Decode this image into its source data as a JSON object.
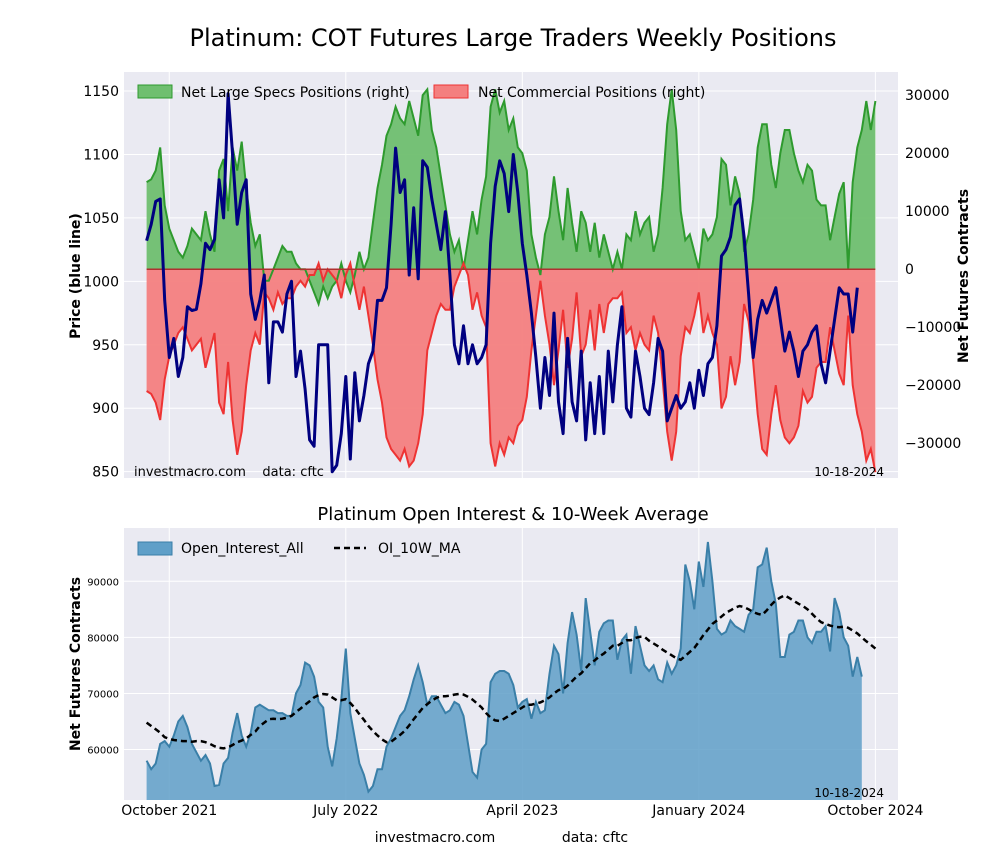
{
  "figure": {
    "title": "Platinum: COT Futures Large Traders Weekly Positions",
    "footer_site": "investmacro.com",
    "footer_data": "data: cftc"
  },
  "chart_data": [
    {
      "type": "area",
      "title": "Platinum: COT Futures Large Traders Weekly Positions",
      "ylabel": "Price (blue line)",
      "y2label": "Net Futures Contracts",
      "ylim": [
        845,
        1165
      ],
      "y2lim": [
        -36000,
        34000
      ],
      "yticks": [
        850,
        900,
        950,
        1000,
        1050,
        1100,
        1150
      ],
      "y2ticks": [
        -30000,
        -20000,
        -10000,
        0,
        10000,
        20000,
        30000
      ],
      "y2ticklabels": [
        "−30000",
        "−20000",
        "−10000",
        "0",
        "10000",
        "20000",
        "30000"
      ],
      "xlim": [
        -5,
        166
      ],
      "grid": true,
      "legend": "top",
      "annot_left": "investmacro.com    data: cftc",
      "annot_right": "10-18-2024",
      "series": [
        {
          "name": "Net Large Specs Positions (right)",
          "axis": "right",
          "color": "#2e9a2e",
          "fill": "#6fbf6f",
          "values": [
            15000,
            15500,
            17000,
            21000,
            11000,
            7000,
            5000,
            3000,
            2000,
            4000,
            7000,
            6000,
            5000,
            10000,
            6000,
            3000,
            17000,
            19000,
            10000,
            21000,
            17000,
            22000,
            14000,
            8000,
            4000,
            6000,
            -2000,
            -2000,
            0,
            2000,
            4000,
            3000,
            3000,
            1000,
            0,
            0,
            -2000,
            -4000,
            -6000,
            -3000,
            -5000,
            -3000,
            -2000,
            1000,
            -2000,
            -4000,
            -1000,
            3000,
            0,
            2000,
            8000,
            14000,
            18000,
            23000,
            25000,
            28000,
            26000,
            25000,
            29000,
            26000,
            23000,
            30000,
            31000,
            24000,
            21000,
            16000,
            11000,
            6000,
            3000,
            5000,
            0,
            5000,
            10000,
            6000,
            12000,
            16000,
            28000,
            31000,
            27000,
            29000,
            24000,
            26000,
            21000,
            20000,
            17000,
            6000,
            2000,
            -1000,
            6000,
            9000,
            16000,
            10000,
            5000,
            14000,
            8000,
            3000,
            10000,
            8000,
            3000,
            8000,
            2000,
            6000,
            3000,
            0,
            3000,
            0,
            6000,
            5000,
            10000,
            6000,
            8000,
            9000,
            3000,
            6000,
            14000,
            25000,
            31000,
            24000,
            10000,
            5000,
            6000,
            3000,
            0,
            7000,
            5000,
            6000,
            9000,
            19000,
            18000,
            11000,
            16000,
            13000,
            3000,
            6000,
            12000,
            21000,
            25000,
            25000,
            18000,
            14000,
            20000,
            24000,
            24000,
            20000,
            17000,
            15000,
            18000,
            17000,
            12000,
            11000,
            11000,
            5000,
            9000,
            13000,
            15000,
            0,
            15000,
            21000,
            24000,
            29000,
            24000,
            29000
          ]
        },
        {
          "name": "Net Commercial Positions (right)",
          "axis": "right",
          "color": "#ee3333",
          "fill": "#f47f7f",
          "values": [
            -21000,
            -21500,
            -23000,
            -26000,
            -19000,
            -15000,
            -13000,
            -11000,
            -10000,
            -12000,
            -14000,
            -13000,
            -12000,
            -17000,
            -14000,
            -11000,
            -23000,
            -25000,
            -16000,
            -26000,
            -32000,
            -28000,
            -20000,
            -14000,
            -11000,
            -13000,
            -4000,
            -5000,
            -7000,
            -4000,
            -6000,
            -5000,
            -5000,
            -3000,
            -2000,
            -3000,
            -1000,
            -1000,
            1000,
            -2000,
            0,
            -1000,
            -2000,
            -5000,
            -1000,
            1000,
            -3000,
            -7000,
            -3000,
            -8000,
            -13000,
            -19000,
            -23000,
            -29000,
            -31000,
            -32000,
            -33000,
            -31000,
            -34000,
            -33000,
            -30000,
            -25000,
            -14000,
            -11000,
            -8000,
            -6000,
            -7000,
            -7000,
            -3000,
            -1000,
            1000,
            -1000,
            -7000,
            -4000,
            -8000,
            -10000,
            -30000,
            -34000,
            -30000,
            -32000,
            -29000,
            -30000,
            -27000,
            -26000,
            -22000,
            -14000,
            -8000,
            -2000,
            -8000,
            -13000,
            -20000,
            -14000,
            -7000,
            -17000,
            -12000,
            -4000,
            -15000,
            -13000,
            -7000,
            -14000,
            -6000,
            -11000,
            -6000,
            -5000,
            -5000,
            -4000,
            -11000,
            -10000,
            -14000,
            -11000,
            -13000,
            -14000,
            -8000,
            -11000,
            -19000,
            -28000,
            -33000,
            -28000,
            -15000,
            -10000,
            -11000,
            -8000,
            -4000,
            -11000,
            -8000,
            -11000,
            -13000,
            -24000,
            -22000,
            -15000,
            -20000,
            -16000,
            -6000,
            -9000,
            -16000,
            -25000,
            -31000,
            -32000,
            -25000,
            -20000,
            -26000,
            -29000,
            -30000,
            -29000,
            -27000,
            -21000,
            -23000,
            -22000,
            -17000,
            -16000,
            -16000,
            -10000,
            -14000,
            -18000,
            -20000,
            -8000,
            -20000,
            -25000,
            -28000,
            -33000,
            -31000,
            -35000
          ]
        },
        {
          "name": "Price",
          "axis": "left",
          "color": "#000080",
          "values": [
            1032,
            1045,
            1063,
            1065,
            985,
            940,
            955,
            925,
            940,
            980,
            977,
            978,
            998,
            1030,
            1025,
            1033,
            1080,
            1050,
            1148,
            1100,
            1045,
            1070,
            1080,
            990,
            970,
            985,
            1005,
            920,
            968,
            968,
            960,
            990,
            1000,
            925,
            945,
            915,
            875,
            870,
            950,
            950,
            950,
            850,
            855,
            880,
            925,
            860,
            928,
            890,
            910,
            935,
            945,
            985,
            985,
            995,
            1045,
            1105,
            1070,
            1080,
            1005,
            1058,
            1002,
            1095,
            1090,
            1065,
            1045,
            1025,
            1055,
            1005,
            950,
            935,
            965,
            935,
            950,
            935,
            940,
            950,
            1030,
            1075,
            1095,
            1085,
            1055,
            1100,
            1070,
            1030,
            1005,
            975,
            940,
            900,
            940,
            910,
            975,
            905,
            880,
            955,
            905,
            890,
            945,
            875,
            920,
            880,
            925,
            880,
            945,
            905,
            950,
            980,
            900,
            893,
            945,
            925,
            900,
            895,
            920,
            955,
            945,
            890,
            900,
            910,
            900,
            905,
            920,
            900,
            930,
            910,
            935,
            940,
            965,
            1020,
            1025,
            1035,
            1060,
            1065,
            1035,
            990,
            940,
            970,
            985,
            975,
            985,
            995,
            970,
            945,
            960,
            945,
            925,
            945,
            950,
            960,
            965,
            935,
            920,
            945,
            970,
            995,
            990,
            990,
            960,
            995
          ]
        }
      ]
    },
    {
      "type": "area",
      "title": "Platinum Open Interest & 10-Week Average",
      "xlabel": "",
      "ylabel": "Net Futures Contracts",
      "ylim": [
        51000,
        99500
      ],
      "yticks": [
        60000,
        70000,
        80000,
        90000
      ],
      "xlim": [
        -5,
        166
      ],
      "xticks": [
        {
          "label": "October 2021",
          "i": 5
        },
        {
          "label": "July 2022",
          "i": 44
        },
        {
          "label": "April 2023",
          "i": 83
        },
        {
          "label": "January 2024",
          "i": 122
        },
        {
          "label": "October 2024",
          "i": 161
        }
      ],
      "grid": true,
      "legend": "top-left",
      "annot_right": "10-18-2024",
      "series": [
        {
          "name": "Open_Interest_All",
          "color": "#3a7fa8",
          "fill": "#5f9fc8",
          "values": [
            58000,
            56500,
            57500,
            61000,
            61500,
            60500,
            62500,
            65000,
            66000,
            64000,
            61000,
            59500,
            58000,
            59000,
            57500,
            53500,
            53700,
            57500,
            58500,
            63000,
            66500,
            62500,
            60500,
            63000,
            67500,
            68000,
            67500,
            67000,
            67000,
            66500,
            66500,
            66000,
            66000,
            70000,
            71500,
            75500,
            75000,
            73000,
            68500,
            67500,
            60500,
            57000,
            62000,
            69000,
            78000,
            66500,
            62000,
            57500,
            55500,
            52500,
            53500,
            56500,
            56500,
            60500,
            62000,
            64000,
            66000,
            67000,
            69500,
            72500,
            75000,
            72000,
            68000,
            69500,
            69500,
            68000,
            66500,
            67000,
            68500,
            68000,
            66000,
            61000,
            56000,
            55000,
            60000,
            61000,
            72000,
            73500,
            74000,
            74000,
            73500,
            71500,
            67500,
            68500,
            69000,
            65500,
            68500,
            66500,
            67000,
            73500,
            78500,
            77000,
            70000,
            79000,
            84500,
            80500,
            74000,
            87000,
            81000,
            75000,
            81000,
            82500,
            83000,
            83000,
            76000,
            79500,
            80500,
            73500,
            82000,
            78500,
            75000,
            74000,
            75000,
            72500,
            72000,
            75500,
            73500,
            75000,
            78000,
            93000,
            90000,
            85000,
            93500,
            89000,
            97000,
            90000,
            81500,
            80500,
            81000,
            83000,
            82000,
            81500,
            81000,
            84000,
            85000,
            92500,
            93000,
            96000,
            90000,
            86000,
            76500,
            76500,
            80500,
            81000,
            83000,
            83000,
            80000,
            79000,
            81000,
            81000,
            82000,
            77500,
            87000,
            84500,
            80000,
            78500,
            73000,
            76500,
            73000
          ]
        },
        {
          "name": "OI_10W_MA",
          "color": "#000000",
          "dash": "6,4",
          "values": [
            64800,
            64200,
            63600,
            63000,
            62200,
            61900,
            61700,
            61600,
            61500,
            61500,
            61400,
            61500,
            61500,
            61300,
            61000,
            60600,
            60300,
            60200,
            60400,
            60800,
            61300,
            61600,
            62000,
            62600,
            63200,
            64200,
            64800,
            65400,
            65500,
            65400,
            65500,
            65700,
            66000,
            66700,
            67300,
            68000,
            68600,
            69300,
            69700,
            69900,
            69800,
            69300,
            68800,
            68800,
            69000,
            68300,
            67400,
            66300,
            65300,
            64200,
            63300,
            62500,
            61800,
            61300,
            61400,
            62000,
            62600,
            63300,
            64300,
            65400,
            66400,
            67400,
            68100,
            68700,
            69200,
            69500,
            69500,
            69600,
            69800,
            69900,
            69800,
            69400,
            68900,
            68200,
            67500,
            66500,
            65700,
            65200,
            65100,
            65500,
            66000,
            66500,
            67000,
            67500,
            68000,
            68000,
            68200,
            68400,
            68800,
            69300,
            70000,
            70600,
            70800,
            71400,
            72200,
            73000,
            73600,
            74500,
            75400,
            75900,
            76600,
            77100,
            77800,
            78500,
            78500,
            79000,
            79500,
            79500,
            79900,
            80100,
            80100,
            79400,
            78900,
            78400,
            77800,
            77300,
            76800,
            76300,
            76000,
            76700,
            77400,
            78100,
            79200,
            80400,
            81400,
            82400,
            83000,
            83700,
            84400,
            84800,
            85300,
            85600,
            85400,
            85000,
            84500,
            84200,
            84000,
            84800,
            85800,
            86600,
            87100,
            87500,
            87000,
            86500,
            86000,
            85600,
            85000,
            84200,
            83400,
            82700,
            82400,
            82100,
            81900,
            81800,
            81900,
            81700,
            81200,
            80700,
            80000,
            79300,
            78700,
            78000
          ]
        }
      ]
    }
  ]
}
